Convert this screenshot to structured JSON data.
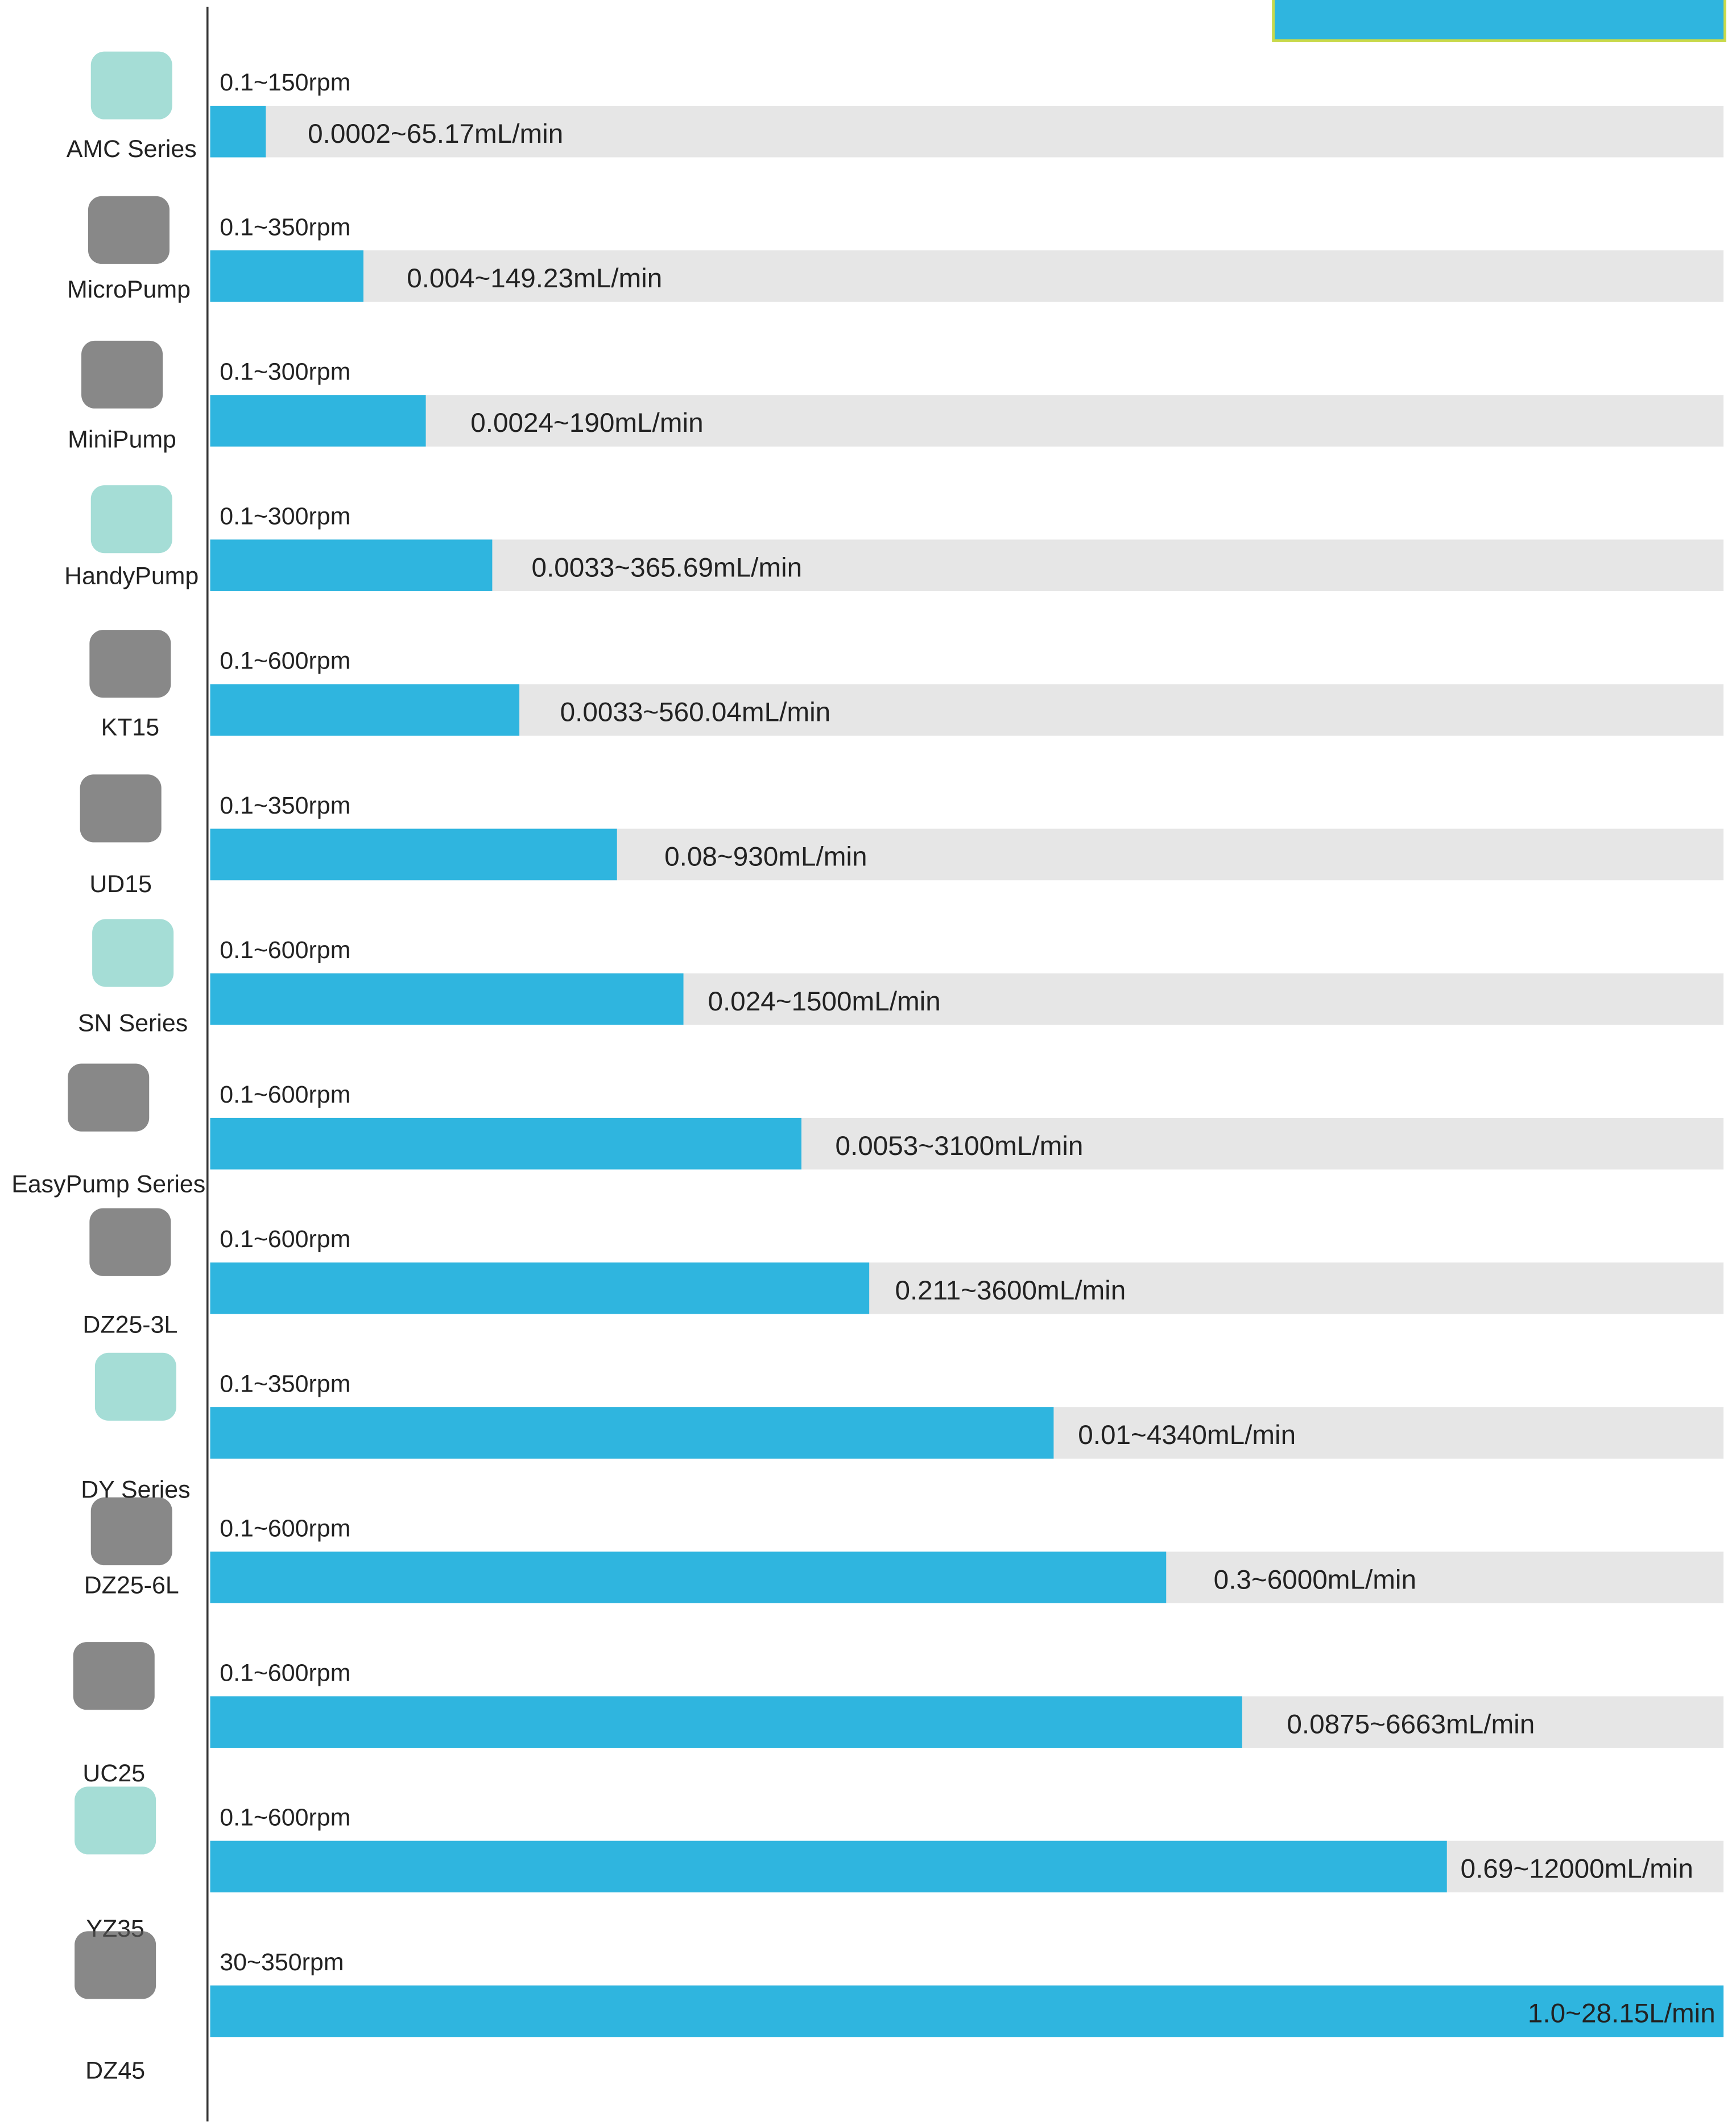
{
  "rows": [
    {
      "name": "AMC Series",
      "speed": "0.1~150rpm",
      "flow": "0.0002~65.17mL/min"
    },
    {
      "name": "MicroPump",
      "speed": "0.1~350rpm",
      "flow": "0.004~149.23mL/min"
    },
    {
      "name": "MiniPump",
      "speed": "0.1~300rpm",
      "flow": "0.0024~190mL/min"
    },
    {
      "name": "HandyPump",
      "speed": "0.1~300rpm",
      "flow": "0.0033~365.69mL/min"
    },
    {
      "name": "KT15",
      "speed": "0.1~600rpm",
      "flow": "0.0033~560.04mL/min"
    },
    {
      "name": "UD15",
      "speed": "0.1~350rpm",
      "flow": "0.08~930mL/min"
    },
    {
      "name": "SN Series",
      "speed": "0.1~600rpm",
      "flow": "0.024~1500mL/min"
    },
    {
      "name": "EasyPump Series",
      "speed": "0.1~600rpm",
      "flow": "0.0053~3100mL/min"
    },
    {
      "name": "DZ25-3L",
      "speed": "0.1~600rpm",
      "flow": "0.211~3600mL/min"
    },
    {
      "name": "DY Series",
      "speed": "0.1~350rpm",
      "flow": "0.01~4340mL/min"
    },
    {
      "name": "DZ25-6L",
      "speed": "0.1~600rpm",
      "flow": "0.3~6000mL/min"
    },
    {
      "name": "UC25",
      "speed": "0.1~600rpm",
      "flow": "0.0875~6663mL/min"
    },
    {
      "name": "YZ35",
      "speed": "0.1~600rpm",
      "flow": "0.69~12000mL/min"
    },
    {
      "name": "DZ45",
      "speed": "30~350rpm",
      "flow": "1.0~28.15L/min"
    }
  ]
}
